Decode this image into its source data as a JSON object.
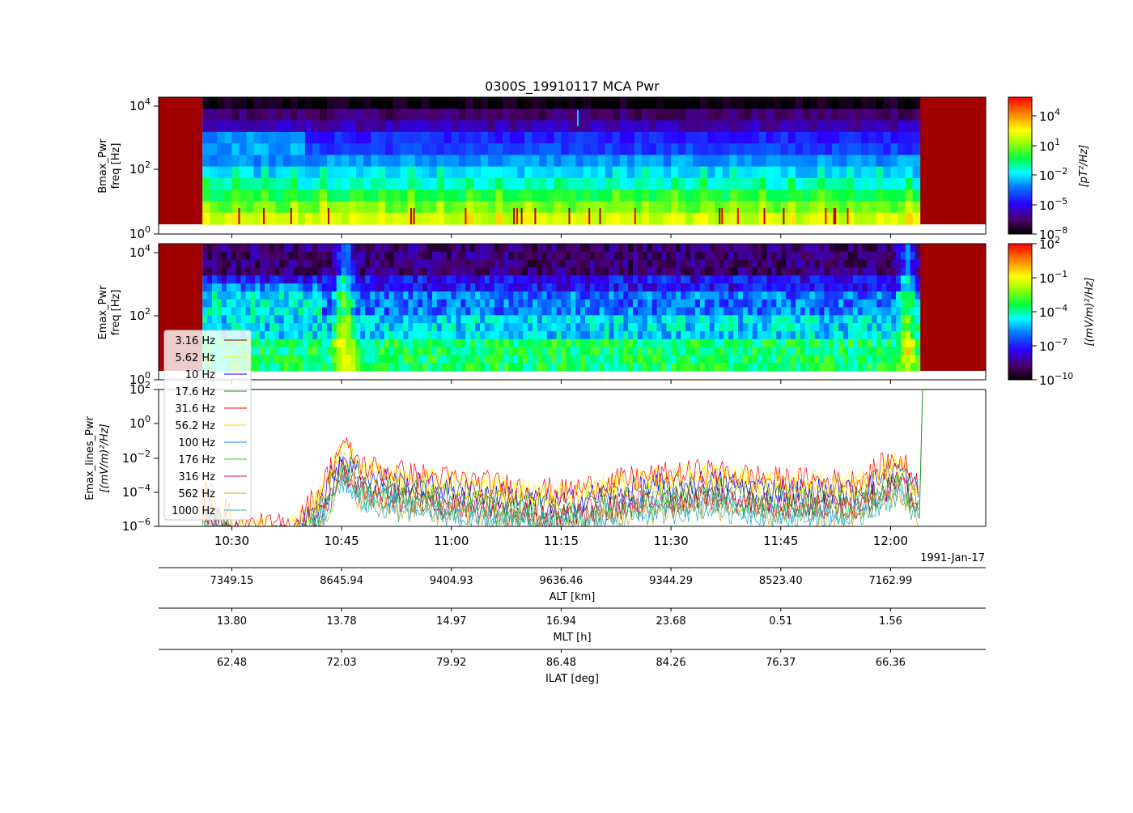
{
  "chart_data": {
    "type": "spectrogram",
    "title": "0300S_19910117 MCA Pwr",
    "date_label": "1991-Jan-17",
    "x_tick_labels": [
      "10:30",
      "10:45",
      "11:00",
      "11:15",
      "11:30",
      "11:45",
      "12:00"
    ],
    "x_range": [
      "10:20",
      "12:13"
    ],
    "panels": [
      {
        "type": "heatmap",
        "ylabel_line1": "Bmax_Pwr",
        "ylabel_line2": "freq [Hz]",
        "y_scale": "log",
        "ylim": [
          1,
          20000
        ],
        "y_tick_labels": [
          {
            "base": "10",
            "exp": "0"
          },
          {
            "base": "10",
            "exp": "2"
          },
          {
            "base": "10",
            "exp": "4"
          }
        ],
        "colorbar_label": "[pT²/Hz]",
        "colorbar_ticks": [
          {
            "base": "10",
            "exp": "4"
          },
          {
            "base": "10",
            "exp": "1"
          },
          {
            "base": "10",
            "exp": "−2"
          },
          {
            "base": "10",
            "exp": "−5"
          },
          {
            "base": "10",
            "exp": "−8"
          }
        ],
        "colorbar_range_log10": [
          -8.5,
          6
        ],
        "data_start": "10:26",
        "data_end": "12:04",
        "band_levels_log10": [
          -8.3,
          -7,
          -6.2,
          -4.8,
          -4.4,
          -3.2,
          -2.5,
          -1.6,
          -0.4,
          0.6,
          1.8
        ]
      },
      {
        "type": "heatmap",
        "ylabel_line1": "Emax_Pwr",
        "ylabel_line2": "freq [Hz]",
        "y_scale": "log",
        "ylim": [
          1,
          20000
        ],
        "y_tick_labels": [
          {
            "base": "10",
            "exp": "0"
          },
          {
            "base": "10",
            "exp": "2"
          },
          {
            "base": "10",
            "exp": "4"
          }
        ],
        "colorbar_label": "[(mV/m)²/Hz]",
        "colorbar_ticks": [
          {
            "base": "10",
            "exp": "2"
          },
          {
            "base": "10",
            "exp": "−1"
          },
          {
            "base": "10",
            "exp": "−4"
          },
          {
            "base": "10",
            "exp": "−7"
          },
          {
            "base": "10",
            "exp": "−10"
          }
        ],
        "colorbar_range_log10": [
          -10.5,
          2.5
        ],
        "data_start": "10:26",
        "data_end": "12:04"
      },
      {
        "type": "line",
        "ylabel_line1": "Emax_lines_Pwr",
        "ylabel_line2": "[(mV/m)²/Hz]",
        "y_scale": "log",
        "ylim": [
          1e-06,
          100
        ],
        "y_tick_labels": [
          {
            "base": "10",
            "exp": "2"
          },
          {
            "base": "10",
            "exp": "0"
          },
          {
            "base": "10",
            "exp": "−2"
          },
          {
            "base": "10",
            "exp": "−4"
          },
          {
            "base": "10",
            "exp": "−6"
          }
        ],
        "series": [
          {
            "name": "3.16 Hz",
            "color": "#8b0000"
          },
          {
            "name": "5.62 Hz",
            "color": "#ffff00"
          },
          {
            "name": "10 Hz",
            "color": "#0000ff"
          },
          {
            "name": "17.6 Hz",
            "color": "#228b22"
          },
          {
            "name": "31.6 Hz",
            "color": "#ff0000"
          },
          {
            "name": "56.2 Hz",
            "color": "#ffd700"
          },
          {
            "name": "100 Hz",
            "color": "#1e90ff"
          },
          {
            "name": "176 Hz",
            "color": "#32cd32"
          },
          {
            "name": "316 Hz",
            "color": "#dc143c"
          },
          {
            "name": "562 Hz",
            "color": "#daa520"
          },
          {
            "name": "1000 Hz",
            "color": "#20b2aa"
          }
        ],
        "approx_log10_envelope": [
          {
            "time": "10:27",
            "value": -4.0
          },
          {
            "time": "10:31",
            "value": -6.0
          },
          {
            "time": "10:38",
            "value": -6.0
          },
          {
            "time": "10:42",
            "value": -4.0
          },
          {
            "time": "10:45",
            "value": -1.2
          },
          {
            "time": "10:48",
            "value": -2.5
          },
          {
            "time": "10:55",
            "value": -3.0
          },
          {
            "time": "11:05",
            "value": -3.5
          },
          {
            "time": "11:15",
            "value": -4.0
          },
          {
            "time": "11:25",
            "value": -3.2
          },
          {
            "time": "11:35",
            "value": -2.8
          },
          {
            "time": "11:45",
            "value": -3.3
          },
          {
            "time": "11:55",
            "value": -3.4
          },
          {
            "time": "12:01",
            "value": -2.0
          },
          {
            "time": "12:04",
            "value": -3.5
          }
        ]
      }
    ],
    "ephemeris": [
      {
        "label": "ALT [km]",
        "values": [
          "7349.15",
          "8645.94",
          "9404.93",
          "9636.46",
          "9344.29",
          "8523.40",
          "7162.99"
        ]
      },
      {
        "label": "MLT [h]",
        "values": [
          "13.80",
          "13.78",
          "14.97",
          "16.94",
          "23.68",
          "0.51",
          "1.56"
        ]
      },
      {
        "label": "ILAT [deg]",
        "values": [
          "62.48",
          "72.03",
          "79.92",
          "86.48",
          "84.26",
          "76.37",
          "66.36"
        ]
      }
    ]
  }
}
